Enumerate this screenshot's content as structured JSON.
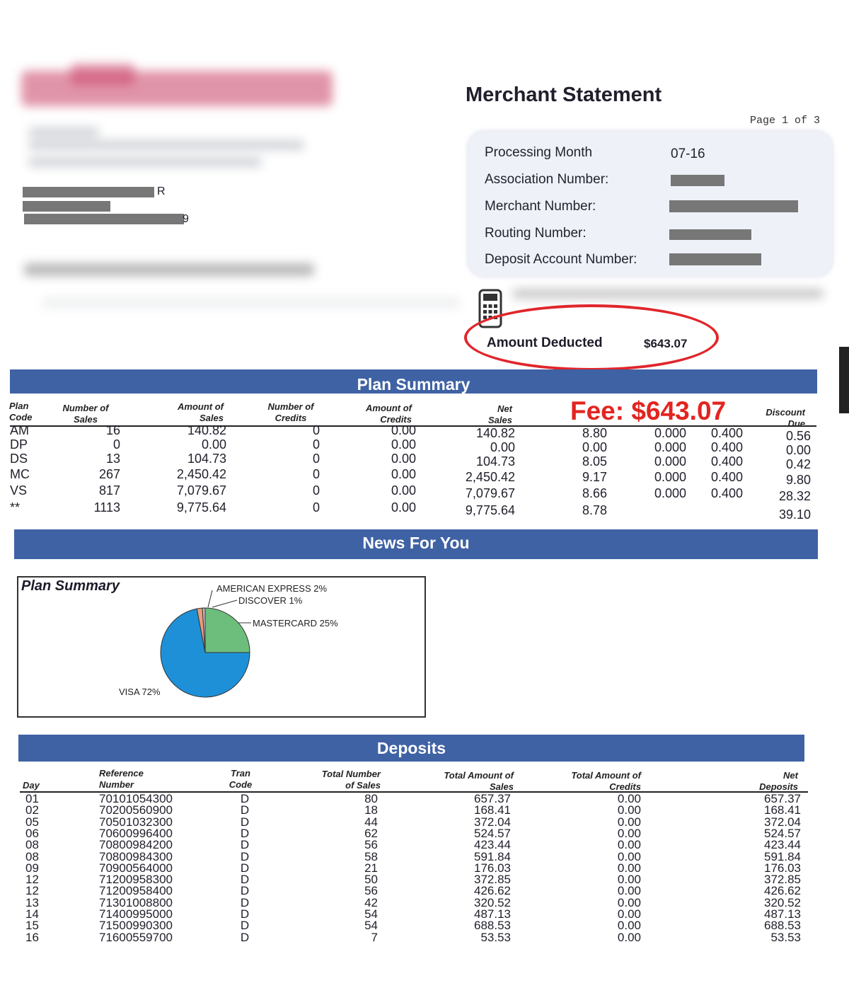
{
  "header": {
    "title": "Merchant Statement",
    "page_label": "Page 1 of 3",
    "merchant_name_suffix": "R",
    "address_suffix": "9"
  },
  "account_info": {
    "processing_month_label": "Processing Month",
    "processing_month_value": "07-16",
    "association_number_label": "Association Number:",
    "merchant_number_label": "Merchant Number:",
    "routing_number_label": "Routing Number:",
    "deposit_account_number_label": "Deposit Account Number:"
  },
  "deduction": {
    "label": "Amount Deducted",
    "value": "$643.07",
    "icon": "calculator-icon"
  },
  "annotation": {
    "fee_text": "Fee: $643.07",
    "color": "#e3241f"
  },
  "plan_summary": {
    "title": "Plan Summary",
    "headers": {
      "plan_code": "Plan Code",
      "number_of_sales": "Number of Sales",
      "amount_of_sales": "Amount of Sales",
      "number_of_credits": "Number of Credits",
      "amount_of_credits": "Amount of Credits",
      "net_sales": "Net Sales",
      "discount_due": "Discount Due"
    },
    "rows": [
      {
        "code": "AM",
        "num_sales": "16",
        "amt_sales": "140.82",
        "num_credits": "0",
        "amt_credits": "0.00",
        "net_sales": "140.82",
        "avg": "8.80",
        "rate1": "0.000",
        "rate2": "0.400",
        "discount": "0.56"
      },
      {
        "code": "DP",
        "num_sales": "0",
        "amt_sales": "0.00",
        "num_credits": "0",
        "amt_credits": "0.00",
        "net_sales": "0.00",
        "avg": "0.00",
        "rate1": "0.000",
        "rate2": "0.400",
        "discount": "0.00"
      },
      {
        "code": "DS",
        "num_sales": "13",
        "amt_sales": "104.73",
        "num_credits": "0",
        "amt_credits": "0.00",
        "net_sales": "104.73",
        "avg": "8.05",
        "rate1": "0.000",
        "rate2": "0.400",
        "discount": "0.42"
      },
      {
        "code": "MC",
        "num_sales": "267",
        "amt_sales": "2,450.42",
        "num_credits": "0",
        "amt_credits": "0.00",
        "net_sales": "2,450.42",
        "avg": "9.17",
        "rate1": "0.000",
        "rate2": "0.400",
        "discount": "9.80"
      },
      {
        "code": "VS",
        "num_sales": "817",
        "amt_sales": "7,079.67",
        "num_credits": "0",
        "amt_credits": "0.00",
        "net_sales": "7,079.67",
        "avg": "8.66",
        "rate1": "0.000",
        "rate2": "0.400",
        "discount": "28.32"
      },
      {
        "code": "**",
        "num_sales": "1113",
        "amt_sales": "9,775.64",
        "num_credits": "0",
        "amt_credits": "0.00",
        "net_sales": "9,775.64",
        "avg": "8.78",
        "rate1": "",
        "rate2": "",
        "discount": "39.10"
      }
    ]
  },
  "news": {
    "title": "News For You"
  },
  "chart_data": {
    "type": "pie",
    "title": "Plan Summary",
    "categories": [
      "VISA",
      "MASTERCARD",
      "DISCOVER",
      "AMERICAN EXPRESS"
    ],
    "values": [
      72,
      25,
      1,
      2
    ],
    "labels": [
      "VISA 72%",
      "MASTERCARD 25%",
      "DISCOVER 1%",
      "AMERICAN EXPRESS 2%"
    ],
    "colors": [
      "#1e90d8",
      "#6dbd7c",
      "#c9b6c8",
      "#e7a07b"
    ]
  },
  "deposits": {
    "title": "Deposits",
    "headers": {
      "day": "Day",
      "reference": "Reference Number",
      "tran_code": "Tran Code",
      "total_number": "Total Number of Sales",
      "total_amount_sales": "Total Amount of Sales",
      "total_amount_credits": "Total Amount of Credits",
      "net_deposits": "Net Deposits"
    },
    "rows": [
      {
        "day": "01",
        "ref": "70101054300",
        "code": "D",
        "num": "80",
        "sales": "657.37",
        "credits": "0.00",
        "net": "657.37"
      },
      {
        "day": "02",
        "ref": "70200560900",
        "code": "D",
        "num": "18",
        "sales": "168.41",
        "credits": "0.00",
        "net": "168.41"
      },
      {
        "day": "05",
        "ref": "70501032300",
        "code": "D",
        "num": "44",
        "sales": "372.04",
        "credits": "0.00",
        "net": "372.04"
      },
      {
        "day": "06",
        "ref": "70600996400",
        "code": "D",
        "num": "62",
        "sales": "524.57",
        "credits": "0.00",
        "net": "524.57"
      },
      {
        "day": "08",
        "ref": "70800984200",
        "code": "D",
        "num": "56",
        "sales": "423.44",
        "credits": "0.00",
        "net": "423.44"
      },
      {
        "day": "08",
        "ref": "70800984300",
        "code": "D",
        "num": "58",
        "sales": "591.84",
        "credits": "0.00",
        "net": "591.84"
      },
      {
        "day": "09",
        "ref": "70900564000",
        "code": "D",
        "num": "21",
        "sales": "176.03",
        "credits": "0.00",
        "net": "176.03"
      },
      {
        "day": "12",
        "ref": "71200958300",
        "code": "D",
        "num": "50",
        "sales": "372.85",
        "credits": "0.00",
        "net": "372.85"
      },
      {
        "day": "12",
        "ref": "71200958400",
        "code": "D",
        "num": "56",
        "sales": "426.62",
        "credits": "0.00",
        "net": "426.62"
      },
      {
        "day": "13",
        "ref": "71301008800",
        "code": "D",
        "num": "42",
        "sales": "320.52",
        "credits": "0.00",
        "net": "320.52"
      },
      {
        "day": "14",
        "ref": "71400995000",
        "code": "D",
        "num": "54",
        "sales": "487.13",
        "credits": "0.00",
        "net": "487.13"
      },
      {
        "day": "15",
        "ref": "71500990300",
        "code": "D",
        "num": "54",
        "sales": "688.53",
        "credits": "0.00",
        "net": "688.53"
      },
      {
        "day": "16",
        "ref": "71600559700",
        "code": "D",
        "num": "7",
        "sales": "53.53",
        "credits": "0.00",
        "net": "53.53"
      }
    ]
  }
}
